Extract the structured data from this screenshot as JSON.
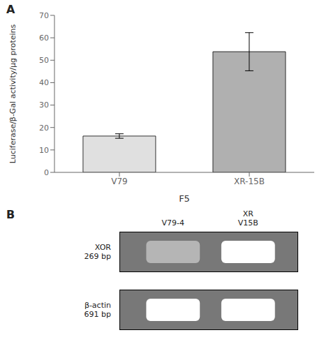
{
  "chart_data": [
    {
      "type": "bar",
      "title": "A",
      "categories": [
        "V79",
        "XR-15B"
      ],
      "values": [
        16.2,
        53.8
      ],
      "errors": [
        1.0,
        8.5
      ],
      "colors": [
        "#e0e0e0",
        "#b0b0b0"
      ],
      "xlabel": "F5",
      "ylabel": "Luciferase/β-Gal activity/μg proteins",
      "ylim": [
        0,
        70
      ],
      "yticks": [
        0,
        10,
        20,
        30,
        40,
        50,
        60,
        70
      ]
    },
    {
      "type": "gel",
      "title": "B",
      "categories": [
        "V79-4",
        "XR\nV15B"
      ],
      "series": [
        {
          "name": "XOR\n269 bp",
          "values": [
            0.45,
            1.0
          ]
        },
        {
          "name": "β-actin\n691 bp",
          "values": [
            1.0,
            1.0
          ]
        }
      ],
      "color": "#787878"
    }
  ]
}
